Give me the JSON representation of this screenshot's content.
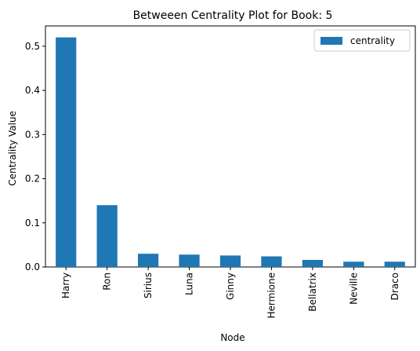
{
  "chart_data": {
    "type": "bar",
    "title": "Betweeen Centrality Plot for Book: 5",
    "xlabel": "Node",
    "ylabel": "Centrality Value",
    "categories": [
      "Harry",
      "Ron",
      "Sirius",
      "Luna",
      "Ginny",
      "Hermione",
      "Bellatrix",
      "Neville",
      "Draco"
    ],
    "series": [
      {
        "name": "centrality",
        "values": [
          0.52,
          0.14,
          0.03,
          0.028,
          0.026,
          0.024,
          0.016,
          0.012,
          0.012
        ],
        "color": "#1f77b4"
      }
    ],
    "ylim": [
      0,
      0.546
    ],
    "yticks": [
      0.0,
      0.1,
      0.2,
      0.3,
      0.4,
      0.5
    ],
    "ytick_labels": [
      "0.0",
      "0.1",
      "0.2",
      "0.3",
      "0.4",
      "0.5"
    ],
    "legend_position": "top-right",
    "grid": false
  }
}
